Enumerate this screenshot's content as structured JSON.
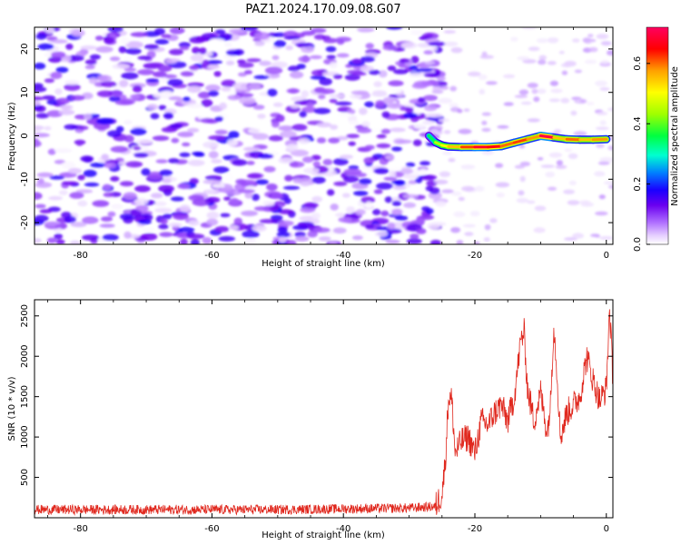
{
  "title": "PAZ1.2024.170.09.08.G07",
  "colors": {
    "snr_line": "#e0281e",
    "colormap": [
      "#ffffff",
      "#e6d0ff",
      "#b070ff",
      "#6a00f0",
      "#1a00ff",
      "#0080ff",
      "#00ffd0",
      "#00ff40",
      "#a0ff00",
      "#ffff00",
      "#ffa000",
      "#ff0000",
      "#ff0060"
    ]
  },
  "chart_data": [
    {
      "type": "heatmap",
      "title": "PAZ1.2024.170.09.08.G07",
      "xlabel": "Height of straight line (km)",
      "ylabel": "Frequency (Hz)",
      "xlim": [
        -87,
        1
      ],
      "ylim": [
        -25,
        25
      ],
      "xticks": [
        -80,
        -60,
        -40,
        -20,
        0
      ],
      "xtick_labels": [
        "-80",
        "-60",
        "-40",
        "-20",
        "0"
      ],
      "yticks": [
        -20,
        -10,
        0,
        10,
        20
      ],
      "ytick_labels": [
        "-20",
        "-10",
        "0",
        "10",
        "20"
      ],
      "colorbar": {
        "label": "Normalized spectral amplitude",
        "range": [
          0,
          0.72
        ],
        "ticks": [
          0.0,
          0.2,
          0.4,
          0.6
        ],
        "tick_labels": [
          "0.0",
          "0.2",
          "0.4",
          "0.6"
        ]
      },
      "signal_track": {
        "x": [
          -27,
          -26,
          -25,
          -24,
          -22,
          -20,
          -18,
          -16,
          -14,
          -12,
          -10,
          -8,
          -6,
          -4,
          -2,
          0
        ],
        "freq": [
          0,
          -1.5,
          -2.2,
          -2.5,
          -2.6,
          -2.6,
          -2.6,
          -2.4,
          -1.6,
          -0.8,
          0.0,
          -0.4,
          -0.8,
          -0.9,
          -0.9,
          -0.8
        ],
        "amplitude": [
          0.35,
          0.45,
          0.5,
          0.55,
          0.62,
          0.68,
          0.66,
          0.6,
          0.62,
          0.58,
          0.7,
          0.55,
          0.6,
          0.55,
          0.58,
          0.5
        ]
      },
      "noise_region": {
        "x_range": [
          -87,
          -27
        ],
        "freq_range": [
          -25,
          25
        ],
        "amplitude_range": [
          0.0,
          0.18
        ]
      }
    },
    {
      "type": "line",
      "xlabel": "Height of straight line (km)",
      "ylabel": "SNR (10 * v/v)",
      "xlim": [
        -87,
        1
      ],
      "ylim": [
        0,
        2700
      ],
      "xticks": [
        -80,
        -60,
        -40,
        -20,
        0
      ],
      "xtick_labels": [
        "-80",
        "-60",
        "-40",
        "-20",
        "0"
      ],
      "yticks": [
        500,
        1000,
        1500,
        2000,
        2500
      ],
      "ytick_labels": [
        "500",
        "1000",
        "1500",
        "2000",
        "2500"
      ],
      "series": [
        {
          "values_description_note": "",
          "x": [
            -87,
            -80,
            -70,
            -60,
            -50,
            -40,
            -30,
            -26,
            -25,
            -24.5,
            -24,
            -23.5,
            -23,
            -22,
            -21,
            -20,
            -19,
            -18,
            -17,
            -16,
            -15,
            -14,
            -13,
            -12.5,
            -12,
            -11,
            -10,
            -9,
            -8.5,
            -8,
            -7.5,
            -7,
            -6,
            -5,
            -4,
            -3,
            -2,
            -1,
            0,
            0.5,
            1
          ],
          "y": [
            100,
            100,
            100,
            100,
            100,
            110,
            120,
            140,
            300,
            700,
            1500,
            1450,
            800,
            950,
            1000,
            800,
            1200,
            1150,
            1300,
            1400,
            1200,
            1500,
            2200,
            2300,
            1600,
            1200,
            1550,
            1050,
            1400,
            2400,
            1800,
            1000,
            1300,
            1400,
            1500,
            2000,
            1700,
            1450,
            1600,
            2600,
            1700
          ]
        }
      ]
    }
  ]
}
